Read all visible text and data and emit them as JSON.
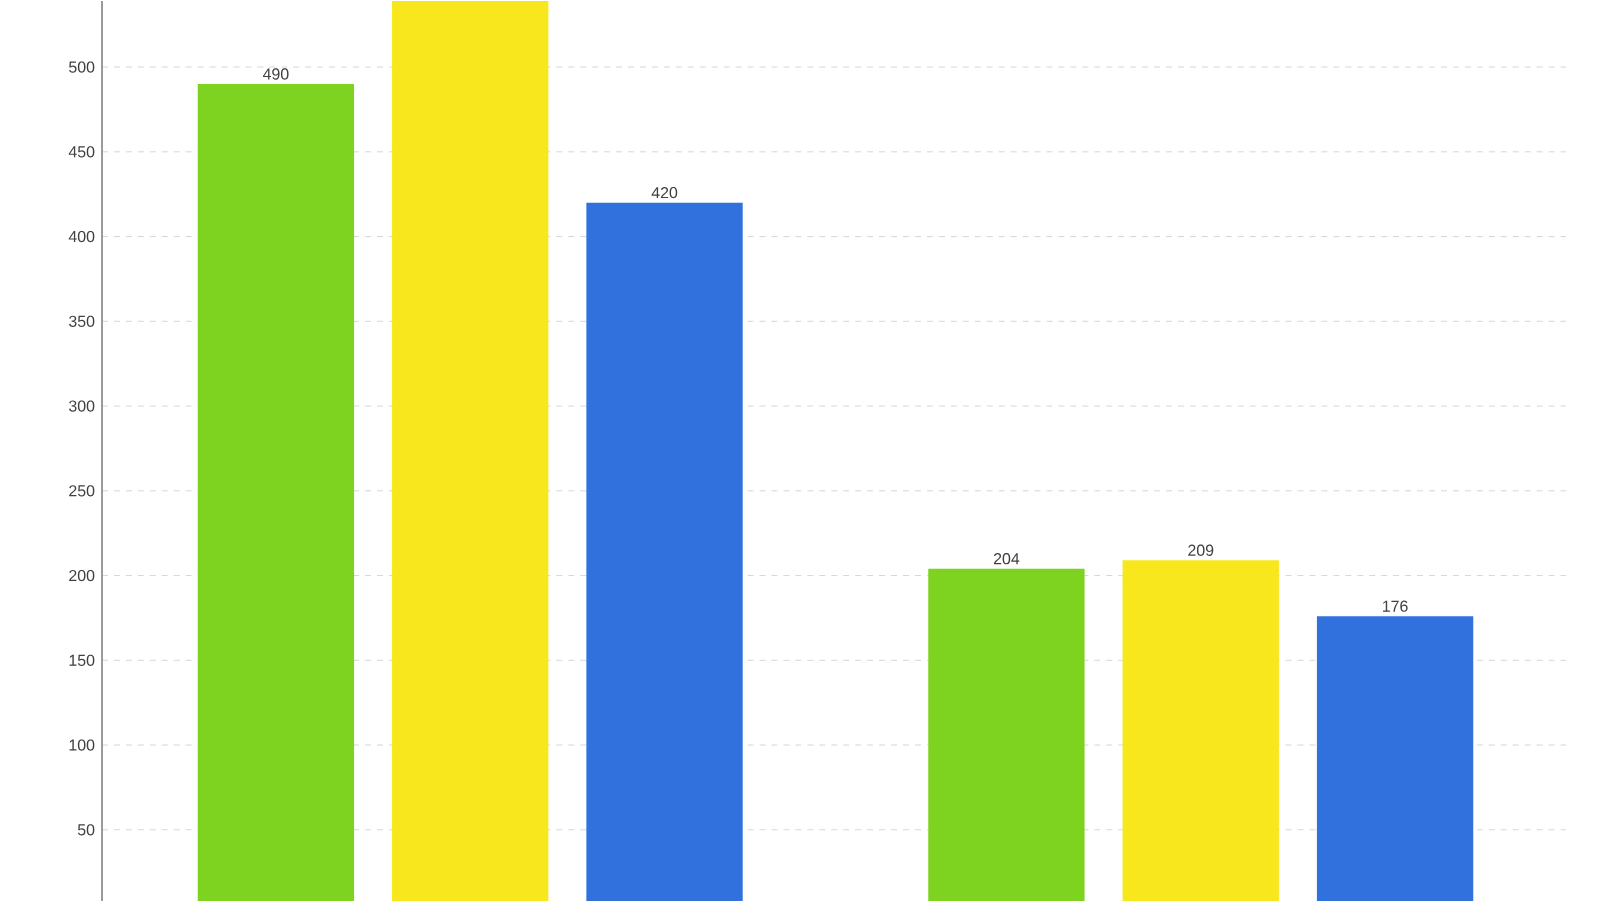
{
  "chart_data": {
    "type": "bar",
    "categories": [
      null,
      null
    ],
    "series": [
      {
        "color": "#7ed321",
        "values": [
          490,
          204
        ],
        "value_labels": [
          "490",
          "204"
        ]
      },
      {
        "color": "#f8e71c",
        "values": [
          539,
          209
        ],
        "value_labels": [
          null,
          "209"
        ]
      },
      {
        "color": "#3071de",
        "values": [
          420,
          176
        ],
        "value_labels": [
          "420",
          "176"
        ]
      }
    ],
    "ylim": [
      8,
      539
    ],
    "yticks": [
      50,
      100,
      150,
      200,
      250,
      300,
      350,
      400,
      450,
      500
    ],
    "grid": "y",
    "legend": false
  }
}
